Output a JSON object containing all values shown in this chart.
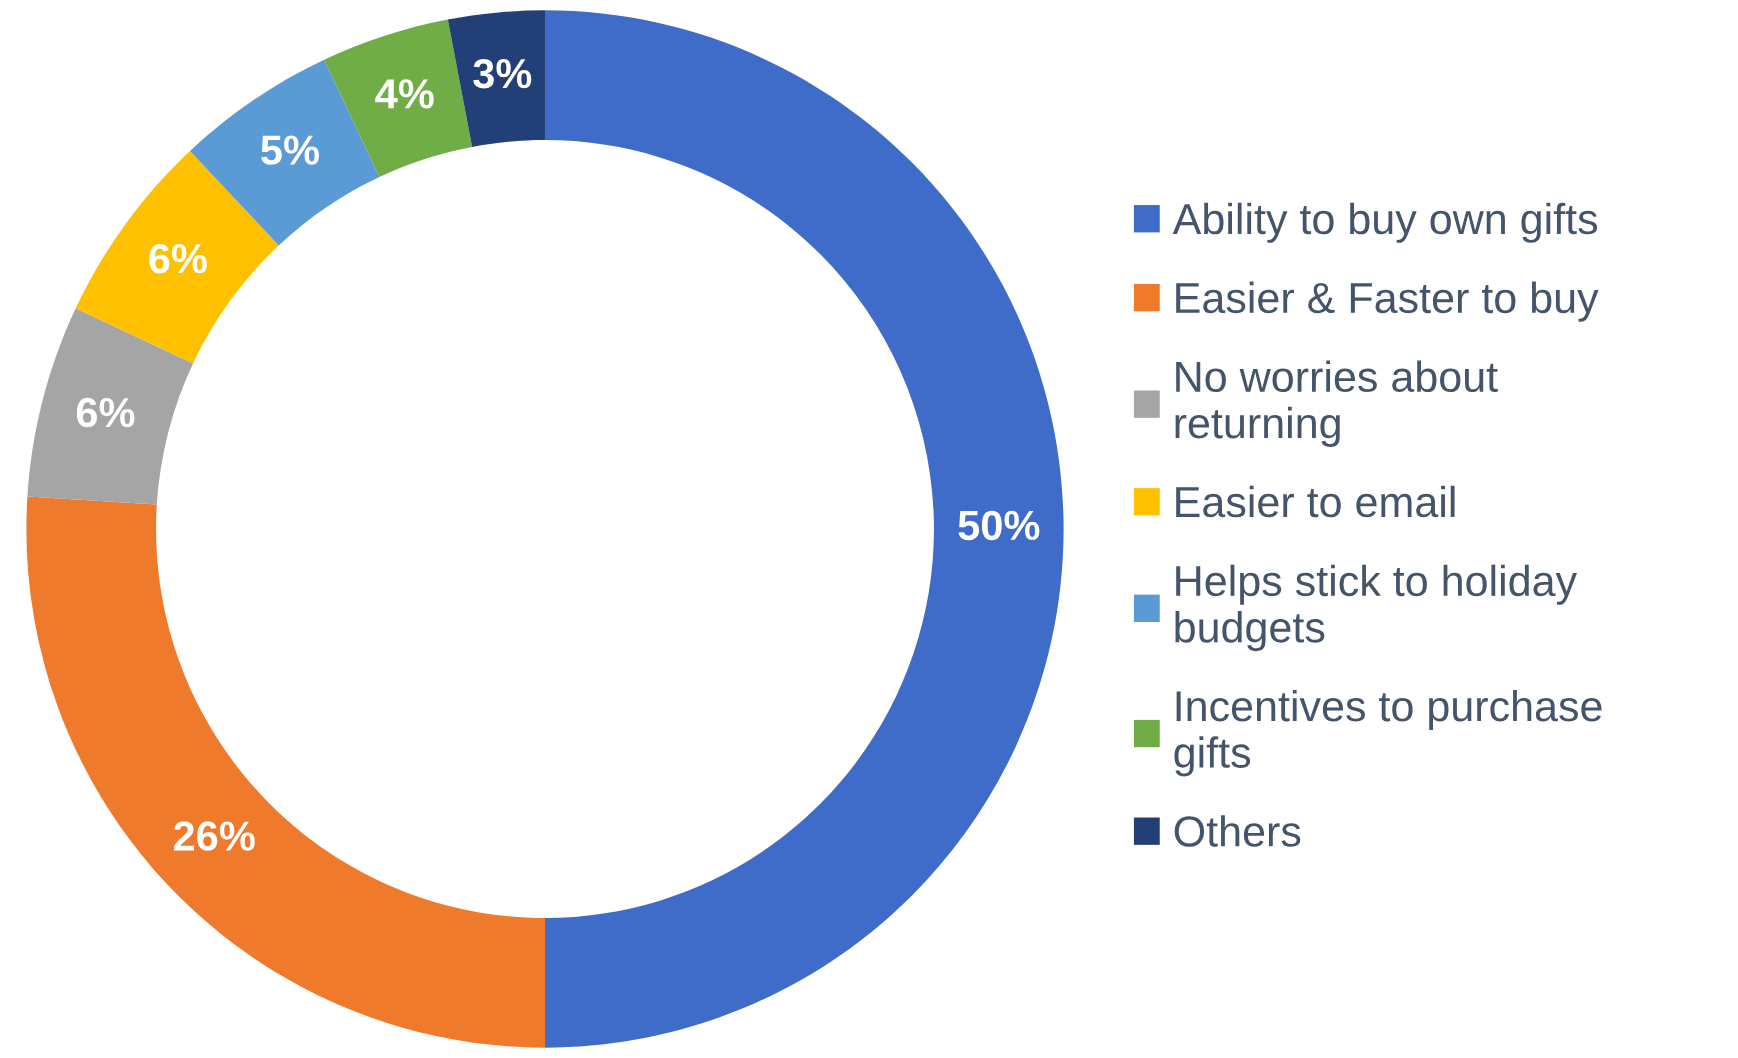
{
  "chart_data": {
    "type": "donut",
    "categories": [
      "Ability to buy own gifts",
      "Easier & Faster to buy",
      "No worries about\nreturning",
      "Easier to email",
      "Helps stick to holiday\nbudgets",
      "Incentives to purchase\ngifts",
      "Others"
    ],
    "values": [
      50,
      26,
      6,
      6,
      5,
      4,
      3
    ],
    "colors": [
      "#3f6cc8",
      "#ef7a2c",
      "#a5a5a5",
      "#ffc000",
      "#5b9bd5",
      "#70ad47",
      "#233f78"
    ],
    "value_labels": [
      "50%",
      "26%",
      "6%",
      "6%",
      "5%",
      "4%",
      "3%"
    ],
    "legend": "right"
  }
}
